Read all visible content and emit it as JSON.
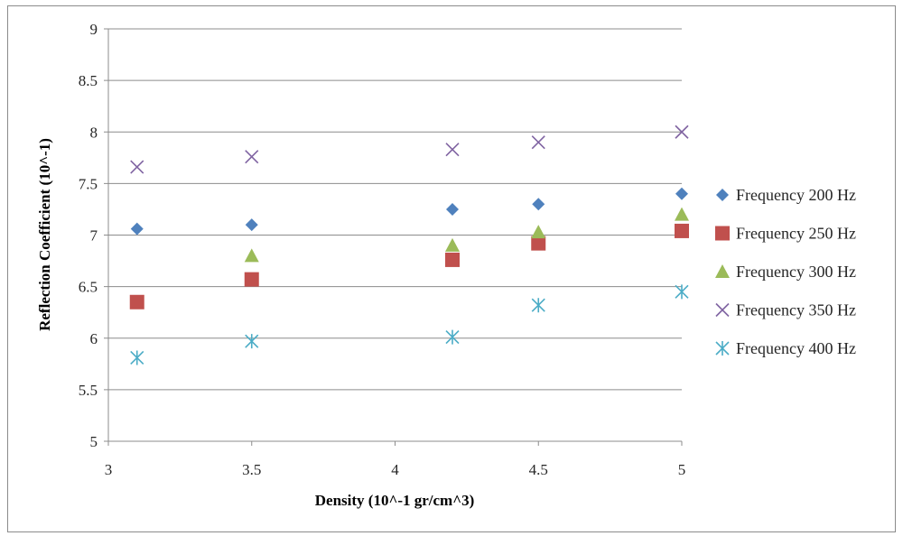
{
  "chart_data": {
    "type": "scatter",
    "title": "",
    "xlabel": "Density (10^-1 gr/cm^3)",
    "ylabel": "Reflection Coefficient (10^-1)",
    "xlim": [
      3,
      5
    ],
    "ylim": [
      5,
      9
    ],
    "xticks": [
      3,
      3.5,
      4,
      4.5,
      5
    ],
    "xtick_labels": [
      "3",
      "3.5",
      "4",
      "4.5",
      "5"
    ],
    "yticks": [
      5,
      5.5,
      6,
      6.5,
      7,
      7.5,
      8,
      8.5,
      9
    ],
    "ytick_labels": [
      "5",
      "5.5",
      "6",
      "6.5",
      "7",
      "7.5",
      "8",
      "8.5",
      "9"
    ],
    "grid": "horizontal",
    "legend_position": "right",
    "x": [
      3.1,
      3.5,
      4.2,
      4.5,
      5
    ],
    "series": [
      {
        "name": "Frequency 200 Hz",
        "marker": "diamond",
        "color": "#4f81bd",
        "values": [
          7.06,
          7.1,
          7.25,
          7.3,
          7.4
        ]
      },
      {
        "name": "Frequency 250 Hz",
        "marker": "square",
        "color": "#c0504d",
        "values": [
          6.35,
          6.57,
          6.76,
          6.92,
          7.04
        ]
      },
      {
        "name": "Frequency 300 Hz",
        "marker": "triangle",
        "color": "#9bbb59",
        "values": [
          null,
          6.8,
          6.9,
          7.03,
          7.2
        ]
      },
      {
        "name": "Frequency 350 Hz",
        "marker": "x",
        "color": "#8064a2",
        "values": [
          7.66,
          7.76,
          7.83,
          7.9,
          8.0
        ]
      },
      {
        "name": "Frequency 400 Hz",
        "marker": "star",
        "color": "#4bacc6",
        "values": [
          5.81,
          5.97,
          6.01,
          6.32,
          6.45
        ]
      }
    ]
  }
}
